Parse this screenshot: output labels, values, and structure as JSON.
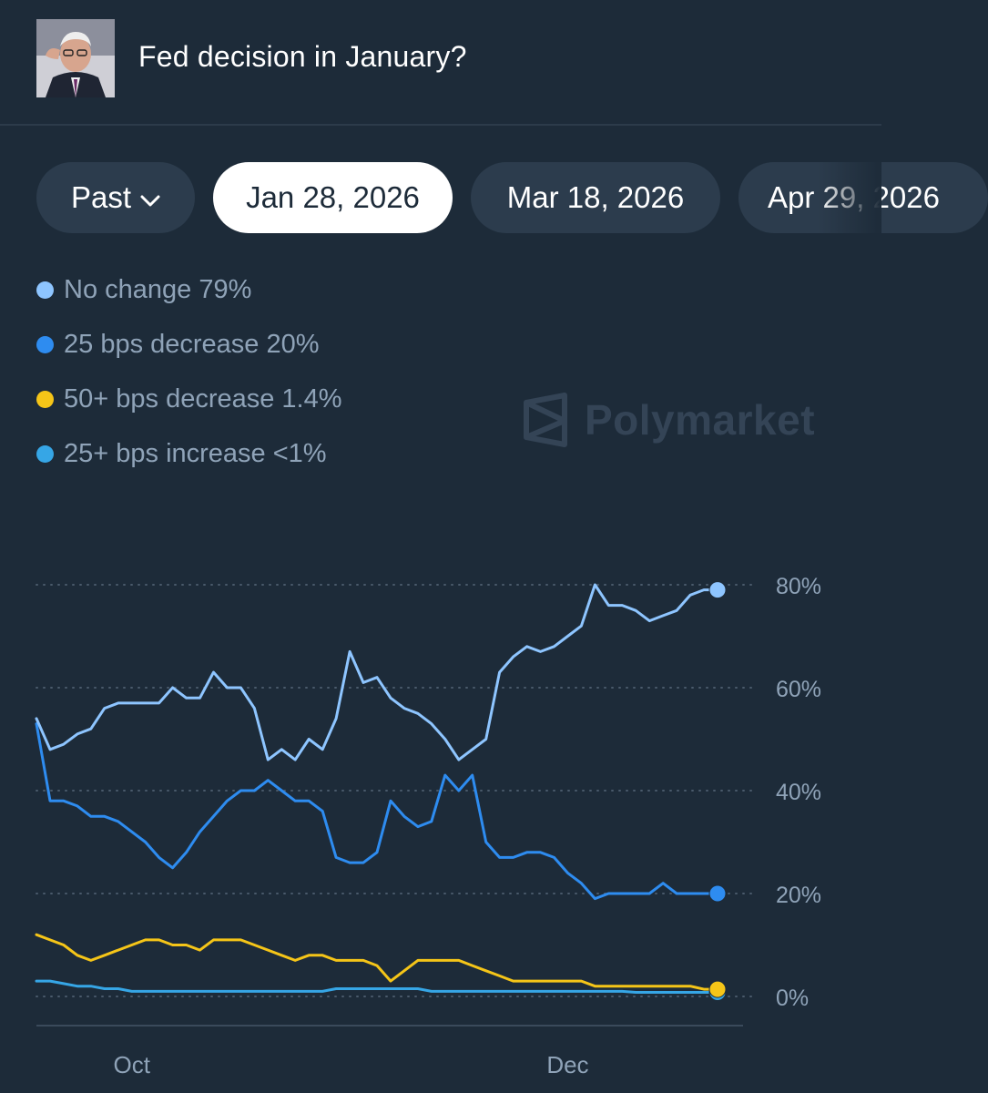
{
  "header": {
    "title": "Fed decision in January?"
  },
  "tabs": [
    {
      "label": "Past",
      "has_chevron": true,
      "active": false
    },
    {
      "label": "Jan 28, 2026",
      "active": true
    },
    {
      "label": "Mar 18, 2026",
      "active": false
    },
    {
      "label": "Apr 29, 2026",
      "active": false
    }
  ],
  "legend": [
    {
      "label": "No change 79%",
      "color": "#8ec5ff"
    },
    {
      "label": "25 bps decrease 20%",
      "color": "#2e8cf0"
    },
    {
      "label": "50+ bps decrease 1.4%",
      "color": "#f5c518"
    },
    {
      "label": "25+ bps increase <1%",
      "color": "#36a6e6"
    }
  ],
  "watermark": {
    "text": "Polymarket"
  },
  "colors": {
    "background": "#1d2b39",
    "grid": "#4a5a6b",
    "axis_text": "#8fa3b8",
    "active_pill_bg": "#ffffff",
    "pill_bg": "#2c3c4d"
  },
  "chart_data": {
    "type": "line",
    "title": "",
    "xlabel": "",
    "ylabel": "",
    "ylim": [
      0,
      80
    ],
    "y_ticks": [
      "80%",
      "60%",
      "40%",
      "20%",
      "0%"
    ],
    "y_tick_values": [
      80,
      60,
      40,
      20,
      0
    ],
    "x_ticks": [
      "Oct",
      "Dec"
    ],
    "x_tick_positions": [
      0.14,
      0.78
    ],
    "x": [
      0,
      0.02,
      0.04,
      0.06,
      0.08,
      0.1,
      0.12,
      0.14,
      0.16,
      0.18,
      0.2,
      0.22,
      0.24,
      0.26,
      0.28,
      0.3,
      0.32,
      0.34,
      0.36,
      0.38,
      0.4,
      0.42,
      0.44,
      0.46,
      0.48,
      0.5,
      0.52,
      0.54,
      0.56,
      0.58,
      0.6,
      0.62,
      0.64,
      0.66,
      0.68,
      0.7,
      0.72,
      0.74,
      0.76,
      0.78,
      0.8,
      0.82,
      0.84,
      0.86,
      0.88,
      0.9,
      0.92,
      0.94,
      0.96,
      0.98,
      1.0
    ],
    "series": [
      {
        "name": "No change",
        "color": "#8ec5ff",
        "values": [
          54,
          48,
          49,
          51,
          52,
          56,
          57,
          57,
          57,
          57,
          60,
          58,
          58,
          63,
          60,
          60,
          56,
          46,
          48,
          46,
          50,
          48,
          54,
          67,
          61,
          62,
          58,
          56,
          55,
          53,
          50,
          46,
          48,
          50,
          63,
          66,
          68,
          67,
          68,
          70,
          72,
          80,
          76,
          76,
          75,
          73,
          74,
          75,
          78,
          79,
          79
        ]
      },
      {
        "name": "25 bps decrease",
        "color": "#2e8cf0",
        "values": [
          53,
          38,
          38,
          37,
          35,
          35,
          34,
          32,
          30,
          27,
          25,
          28,
          32,
          35,
          38,
          40,
          40,
          42,
          40,
          38,
          38,
          36,
          27,
          26,
          26,
          28,
          38,
          35,
          33,
          34,
          43,
          40,
          43,
          30,
          27,
          27,
          28,
          28,
          27,
          24,
          22,
          19,
          20,
          20,
          20,
          20,
          22,
          20,
          20,
          20,
          20
        ]
      },
      {
        "name": "50+ bps decrease",
        "color": "#f5c518",
        "values": [
          12,
          11,
          10,
          8,
          7,
          8,
          9,
          10,
          11,
          11,
          10,
          10,
          9,
          11,
          11,
          11,
          10,
          9,
          8,
          7,
          8,
          8,
          7,
          7,
          7,
          6,
          3,
          5,
          7,
          7,
          7,
          7,
          6,
          5,
          4,
          3,
          3,
          3,
          3,
          3,
          3,
          2,
          2,
          2,
          2,
          2,
          2,
          2,
          2,
          1.4,
          1.4
        ]
      },
      {
        "name": "25+ bps increase",
        "color": "#36a6e6",
        "values": [
          3,
          3,
          2.5,
          2,
          2,
          1.5,
          1.5,
          1,
          1,
          1,
          1,
          1,
          1,
          1,
          1,
          1,
          1,
          1,
          1,
          1,
          1,
          1,
          1.5,
          1.5,
          1.5,
          1.5,
          1.5,
          1.5,
          1.5,
          1,
          1,
          1,
          1,
          1,
          1,
          1,
          1,
          1,
          1,
          1,
          1,
          1,
          1,
          1,
          0.8,
          0.8,
          0.8,
          0.8,
          0.8,
          0.8,
          0.8
        ]
      }
    ]
  }
}
